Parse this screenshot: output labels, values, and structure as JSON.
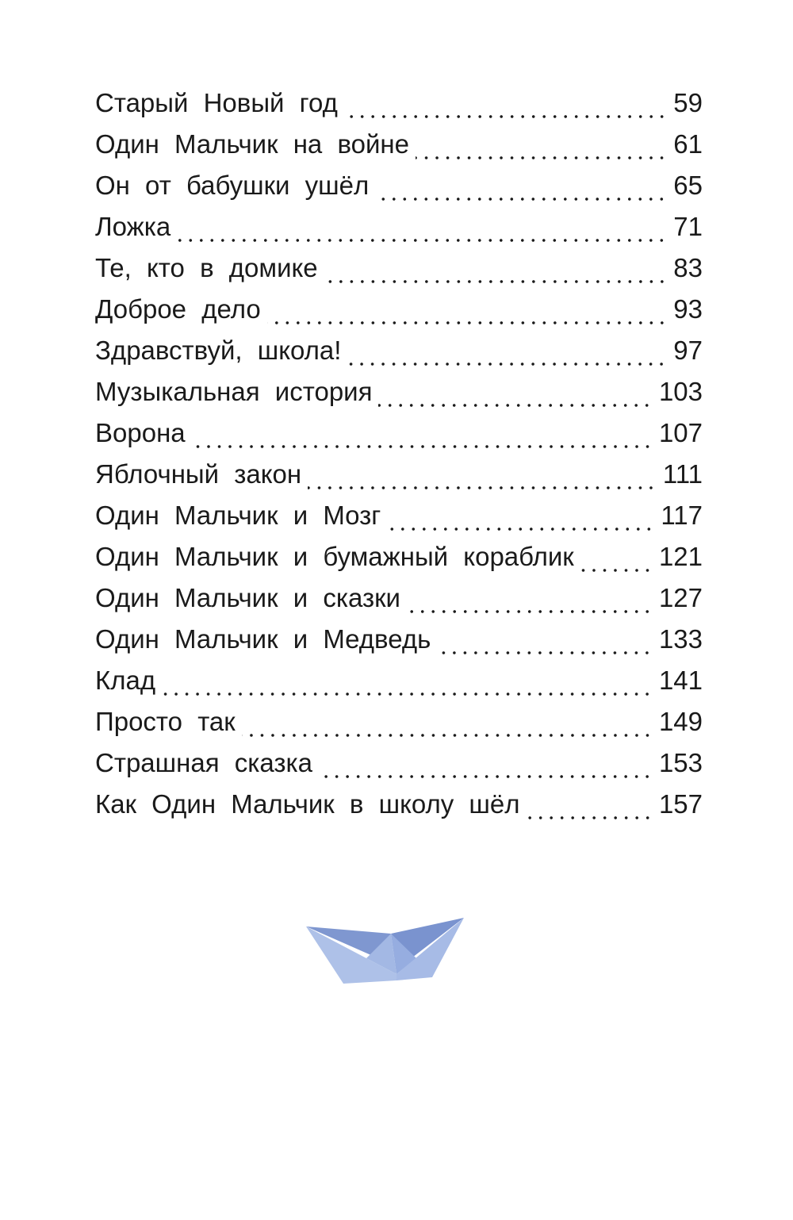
{
  "toc": [
    {
      "title": "Старый Новый год",
      "page": "59"
    },
    {
      "title": "Один Мальчик на войне",
      "page": "61"
    },
    {
      "title": "Он от бабушки ушёл",
      "page": "65"
    },
    {
      "title": "Ложка",
      "page": "71"
    },
    {
      "title": "Те, кто в домике",
      "page": "83"
    },
    {
      "title": "Доброе дело",
      "page": "93"
    },
    {
      "title": "Здравствуй, школа!",
      "page": "97"
    },
    {
      "title": "Музыкальная история",
      "page": "103"
    },
    {
      "title": "Ворона",
      "page": "107"
    },
    {
      "title": "Яблочный закон",
      "page": "111"
    },
    {
      "title": "Один Мальчик и Мозг",
      "page": "117"
    },
    {
      "title": "Один Мальчик и бумажный кораблик",
      "page": "121"
    },
    {
      "title": "Один Мальчик и сказки",
      "page": "127"
    },
    {
      "title": "Один Мальчик и Медведь",
      "page": "133"
    },
    {
      "title": "Клад",
      "page": "141"
    },
    {
      "title": "Просто так",
      "page": "149"
    },
    {
      "title": "Страшная сказка",
      "page": "153"
    },
    {
      "title": "Как Один Мальчик в школу шёл",
      "page": "157"
    }
  ],
  "illustration": {
    "icon": "paper-boat-icon",
    "colors": {
      "light": "#a9bde6",
      "dark": "#7f97d0"
    }
  }
}
